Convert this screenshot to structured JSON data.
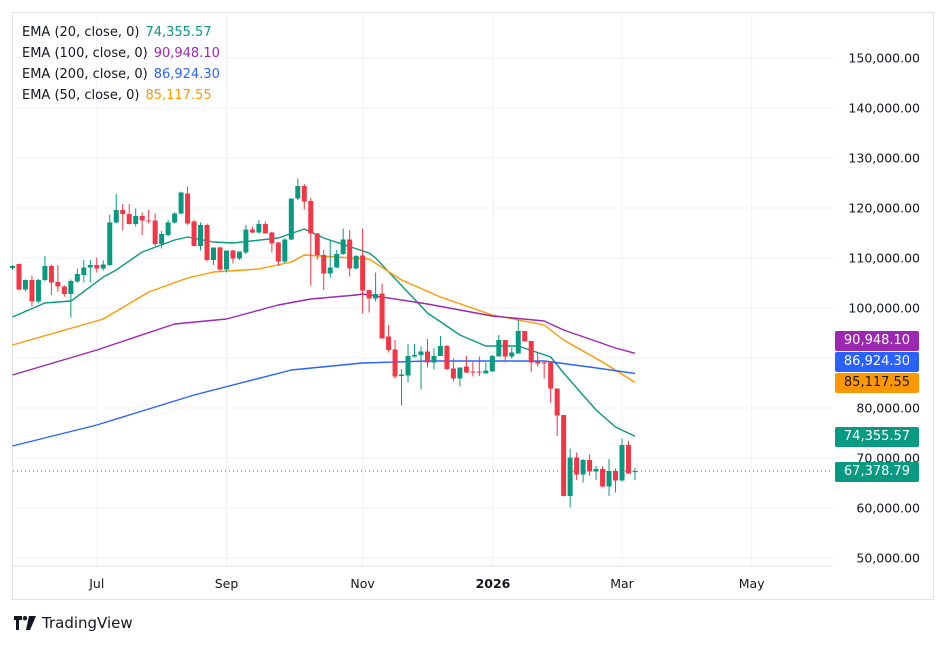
{
  "legend": [
    {
      "label": "EMA (20, close, 0)",
      "value": "74,355.57",
      "color": "#089981"
    },
    {
      "label": "EMA (100, close, 0)",
      "value": "90,948.10",
      "color": "#9c27b0"
    },
    {
      "label": "EMA (200, close, 0)",
      "value": "86,924.30",
      "color": "#2962ff"
    },
    {
      "label": "EMA (50, close, 0)",
      "value": "85,117.55",
      "color": "#ff9800"
    }
  ],
  "price_tags": [
    {
      "value": "90,948.10",
      "color": "#9c27b0",
      "text_color": "#ffffff"
    },
    {
      "value": "86,924.30",
      "color": "#2962ff",
      "text_color": "#ffffff"
    },
    {
      "value": "85,117.55",
      "color": "#ff9800",
      "text_color": "#131722"
    },
    {
      "value": "74,355.57",
      "color": "#089981",
      "text_color": "#ffffff"
    },
    {
      "value": "67,378.79",
      "color": "#089981",
      "text_color": "#ffffff"
    }
  ],
  "branding": {
    "name": "TradingView"
  },
  "chart_data": {
    "type": "candlestick",
    "up_color": "#089981",
    "down_color": "#f23645",
    "ylim": [
      45000,
      155000
    ],
    "grid": true,
    "y_ticks": [
      "150,000.00",
      "140,000.00",
      "130,000.00",
      "120,000.00",
      "110,000.00",
      "100,000.00",
      "80,000.00",
      "70,000.00",
      "60,000.00",
      "50,000.00"
    ],
    "y_tick_values": [
      150000,
      140000,
      130000,
      120000,
      110000,
      100000,
      80000,
      70000,
      60000,
      50000
    ],
    "x_ticks": [
      {
        "label": "Jul",
        "bold": false
      },
      {
        "label": "Sep",
        "bold": false
      },
      {
        "label": "Nov",
        "bold": false
      },
      {
        "label": "2026",
        "bold": true
      },
      {
        "label": "Mar",
        "bold": false
      },
      {
        "label": "May",
        "bold": false
      }
    ],
    "last_price": 67378.79,
    "ohlc": [
      [
        108000,
        108600,
        107600,
        108400
      ],
      [
        108800,
        108900,
        103500,
        103700
      ],
      [
        103700,
        105700,
        103300,
        105600
      ],
      [
        105600,
        106500,
        100300,
        101300
      ],
      [
        101300,
        105800,
        101000,
        105600
      ],
      [
        105600,
        110400,
        105400,
        108400
      ],
      [
        108400,
        108700,
        102600,
        105100
      ],
      [
        105200,
        108600,
        103300,
        104300
      ],
      [
        104300,
        104500,
        102300,
        102800
      ],
      [
        102800,
        105700,
        98100,
        105400
      ],
      [
        105300,
        107900,
        105000,
        106800
      ],
      [
        106600,
        109600,
        105100,
        108100
      ],
      [
        108100,
        109600,
        105100,
        108600
      ],
      [
        108600,
        110100,
        107100,
        107900
      ],
      [
        107900,
        109500,
        107500,
        108700
      ],
      [
        108600,
        118700,
        108400,
        117100
      ],
      [
        117100,
        122800,
        117000,
        119600
      ],
      [
        119600,
        120800,
        115500,
        118800
      ],
      [
        118800,
        120800,
        116700,
        116800
      ],
      [
        116800,
        119900,
        116300,
        118400
      ],
      [
        118400,
        119100,
        114600,
        117500
      ],
      [
        117500,
        119600,
        116900,
        117400
      ],
      [
        117500,
        118900,
        112400,
        112800
      ],
      [
        112800,
        115400,
        111900,
        114800
      ],
      [
        114600,
        117600,
        114300,
        117100
      ],
      [
        117100,
        119100,
        116900,
        118900
      ],
      [
        118900,
        123300,
        118700,
        123100
      ],
      [
        122900,
        124300,
        116600,
        116900
      ],
      [
        117300,
        117600,
        112400,
        112400
      ],
      [
        112400,
        117100,
        111500,
        116600
      ],
      [
        116600,
        116900,
        109300,
        109600
      ],
      [
        109600,
        112100,
        108600,
        112100
      ],
      [
        112100,
        112300,
        107300,
        107700
      ],
      [
        107700,
        111500,
        107100,
        111500
      ],
      [
        111500,
        111600,
        108900,
        109900
      ],
      [
        109900,
        111300,
        109600,
        111300
      ],
      [
        111100,
        116600,
        110800,
        115700
      ],
      [
        115700,
        116300,
        115000,
        115100
      ],
      [
        115100,
        117600,
        114900,
        116800
      ],
      [
        116800,
        117300,
        114900,
        114900
      ],
      [
        115100,
        115300,
        111100,
        112900
      ],
      [
        113100,
        113200,
        108400,
        109300
      ],
      [
        109300,
        113900,
        109000,
        113700
      ],
      [
        113700,
        121900,
        113600,
        121900
      ],
      [
        121900,
        125900,
        121600,
        124400
      ],
      [
        124400,
        124800,
        119700,
        121300
      ],
      [
        121400,
        122000,
        104500,
        114900
      ],
      [
        114900,
        115000,
        109700,
        110600
      ],
      [
        110600,
        111600,
        103600,
        106900
      ],
      [
        106900,
        113600,
        106100,
        108100
      ],
      [
        108100,
        111600,
        108000,
        110800
      ],
      [
        110800,
        115900,
        110600,
        113700
      ],
      [
        113700,
        115600,
        106300,
        107900
      ],
      [
        107900,
        110600,
        107700,
        110400
      ],
      [
        110500,
        115900,
        98900,
        103500
      ],
      [
        103600,
        103600,
        99100,
        101900
      ],
      [
        101900,
        107100,
        101300,
        102800
      ],
      [
        102900,
        104900,
        93900,
        93900
      ],
      [
        94300,
        96600,
        91100,
        91600
      ],
      [
        91700,
        93600,
        85900,
        86300
      ],
      [
        86400,
        87800,
        80500,
        86700
      ],
      [
        86500,
        92800,
        85100,
        90400
      ],
      [
        90300,
        92800,
        90100,
        90600
      ],
      [
        90600,
        92300,
        83700,
        91300
      ],
      [
        91300,
        93800,
        88100,
        89100
      ],
      [
        89100,
        91900,
        87700,
        90400
      ],
      [
        90400,
        94400,
        90400,
        92400
      ],
      [
        92400,
        92600,
        87600,
        87800
      ],
      [
        87900,
        89900,
        85300,
        85900
      ],
      [
        85900,
        88100,
        84300,
        88100
      ],
      [
        88300,
        90400,
        87000,
        87100
      ],
      [
        87300,
        89300,
        86300,
        87100
      ],
      [
        87300,
        90300,
        86400,
        87100
      ],
      [
        86900,
        89100,
        86900,
        87500
      ],
      [
        87300,
        90600,
        87300,
        90400
      ],
      [
        90300,
        94600,
        90300,
        93600
      ],
      [
        93600,
        93600,
        89100,
        90300
      ],
      [
        90300,
        92100,
        89900,
        91100
      ],
      [
        90900,
        97600,
        90900,
        95400
      ],
      [
        95400,
        95400,
        93300,
        93300
      ],
      [
        93400,
        93400,
        87100,
        89100
      ],
      [
        89300,
        91100,
        88300,
        88900
      ],
      [
        89100,
        89300,
        85900,
        88900
      ],
      [
        89100,
        89300,
        81100,
        83900
      ],
      [
        83900,
        83900,
        74400,
        78500
      ],
      [
        78600,
        78600,
        62300,
        62400
      ],
      [
        62400,
        71900,
        60100,
        70100
      ],
      [
        70100,
        71100,
        65600,
        66700
      ],
      [
        66700,
        69800,
        65100,
        69600
      ],
      [
        69600,
        70700,
        66400,
        67300
      ],
      [
        67300,
        68400,
        65600,
        67800
      ],
      [
        67800,
        68300,
        64100,
        64300
      ],
      [
        64300,
        69800,
        62400,
        67400
      ],
      [
        67400,
        67900,
        63100,
        65500
      ],
      [
        65500,
        73900,
        65300,
        72600
      ],
      [
        72600,
        73400,
        66800,
        66900
      ],
      [
        67200,
        68000,
        65600,
        67379
      ]
    ],
    "series": [
      {
        "name": "EMA (20, close, 0)",
        "color": "#089981",
        "points": [
          [
            0,
            98200
          ],
          [
            5,
            101000
          ],
          [
            9,
            101400
          ],
          [
            14,
            106200
          ],
          [
            16,
            107600
          ],
          [
            20,
            111200
          ],
          [
            25,
            113600
          ],
          [
            27,
            114200
          ],
          [
            31,
            113200
          ],
          [
            34,
            113000
          ],
          [
            41,
            114000
          ],
          [
            45,
            115800
          ],
          [
            48,
            114000
          ],
          [
            55,
            111000
          ],
          [
            56,
            110000
          ],
          [
            64,
            99000
          ],
          [
            69,
            94600
          ],
          [
            73,
            92400
          ],
          [
            78,
            92400
          ],
          [
            83,
            90200
          ],
          [
            85,
            87000
          ],
          [
            90,
            79600
          ],
          [
            93,
            76200
          ],
          [
            96,
            74356
          ]
        ]
      },
      {
        "name": "EMA (50, close, 0)",
        "color": "#ff9800",
        "points": [
          [
            0,
            92600
          ],
          [
            7,
            95200
          ],
          [
            14,
            97800
          ],
          [
            21,
            103200
          ],
          [
            27,
            106000
          ],
          [
            31,
            107200
          ],
          [
            38,
            107800
          ],
          [
            43,
            109200
          ],
          [
            45,
            110600
          ],
          [
            55,
            109800
          ],
          [
            60,
            105600
          ],
          [
            66,
            102200
          ],
          [
            74,
            98600
          ],
          [
            82,
            96600
          ],
          [
            85,
            93600
          ],
          [
            91,
            89200
          ],
          [
            96,
            85118
          ]
        ]
      },
      {
        "name": "EMA (100, close, 0)",
        "color": "#9c27b0",
        "points": [
          [
            0,
            86600
          ],
          [
            13,
            91600
          ],
          [
            25,
            96800
          ],
          [
            33,
            97800
          ],
          [
            41,
            100600
          ],
          [
            46,
            101800
          ],
          [
            53,
            102600
          ],
          [
            54,
            102800
          ],
          [
            64,
            100800
          ],
          [
            74,
            98400
          ],
          [
            82,
            97400
          ],
          [
            85,
            95600
          ],
          [
            93,
            92000
          ],
          [
            96,
            90948
          ]
        ]
      },
      {
        "name": "EMA (200, close, 0)",
        "color": "#2962ff",
        "points": [
          [
            0,
            72400
          ],
          [
            13,
            76600
          ],
          [
            28,
            82600
          ],
          [
            43,
            87600
          ],
          [
            54,
            89000
          ],
          [
            64,
            89400
          ],
          [
            82,
            89400
          ],
          [
            89,
            88200
          ],
          [
            96,
            86924
          ]
        ]
      }
    ]
  }
}
